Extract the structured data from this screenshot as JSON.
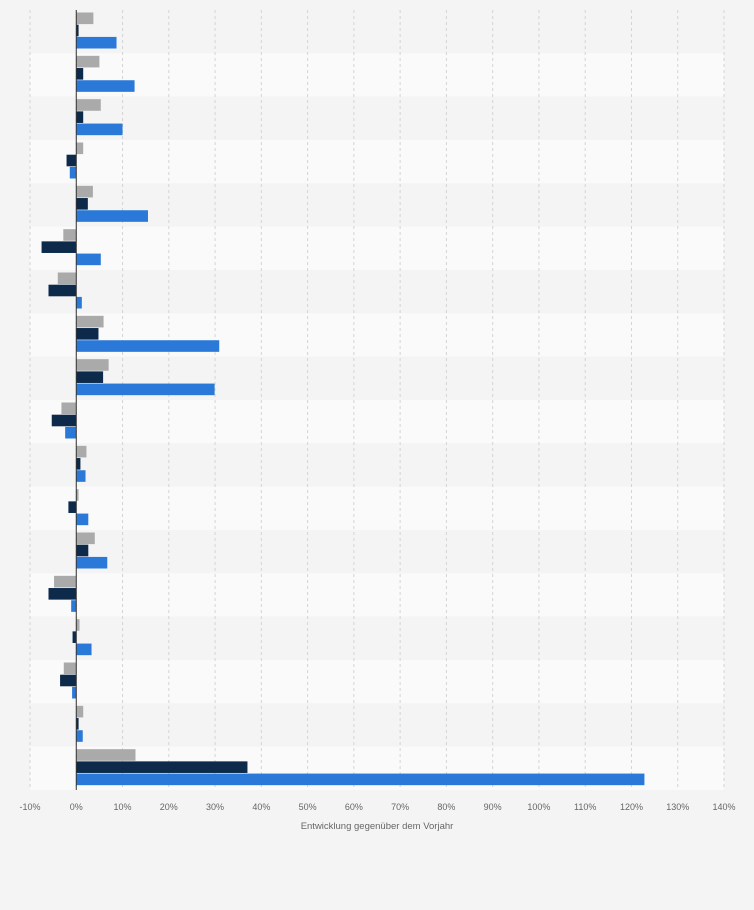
{
  "chart_data": {
    "type": "bar",
    "orientation": "horizontal",
    "title": "",
    "xlabel": "Entwicklung gegenüber dem Vorjahr",
    "ylabel": "",
    "xlim": [
      -10,
      140
    ],
    "x_ticks": [
      -10,
      0,
      10,
      20,
      30,
      40,
      50,
      60,
      70,
      80,
      90,
      100,
      110,
      120,
      130,
      140
    ],
    "tick_labels": [
      "-10%",
      "0%",
      "10%",
      "20%",
      "30%",
      "40%",
      "50%",
      "60%",
      "70%",
      "80%",
      "90%",
      "100%",
      "110%",
      "120%",
      "130%",
      "140%"
    ],
    "grid": true,
    "legend": "none",
    "categories": [
      "",
      "",
      "",
      "",
      "",
      "",
      "",
      "",
      "",
      "",
      "",
      "",
      "",
      "",
      "",
      "",
      "",
      ""
    ],
    "series": [
      {
        "color": "#aaaaaa",
        "values": [
          3.7,
          5,
          5.3,
          1.5,
          3.6,
          -2.8,
          -4,
          5.9,
          7,
          -3.2,
          2.2,
          0.5,
          4,
          -4.8,
          0.7,
          -2.7,
          1.5,
          12.8
        ]
      },
      {
        "color": "#0d2a4a",
        "values": [
          0.5,
          1.5,
          1.5,
          -2.1,
          2.5,
          -7.5,
          -6,
          4.8,
          5.8,
          -5.3,
          0.9,
          -1.7,
          2.6,
          -6,
          -0.8,
          -3.5,
          0.5,
          37
        ]
      },
      {
        "color": "#2a79d8",
        "values": [
          8.7,
          12.6,
          10,
          -1.4,
          15.5,
          5.3,
          1.2,
          30.9,
          29.9,
          -2.4,
          2,
          2.6,
          6.7,
          -1.1,
          3.3,
          -0.9,
          1.4,
          122.8
        ]
      }
    ]
  }
}
